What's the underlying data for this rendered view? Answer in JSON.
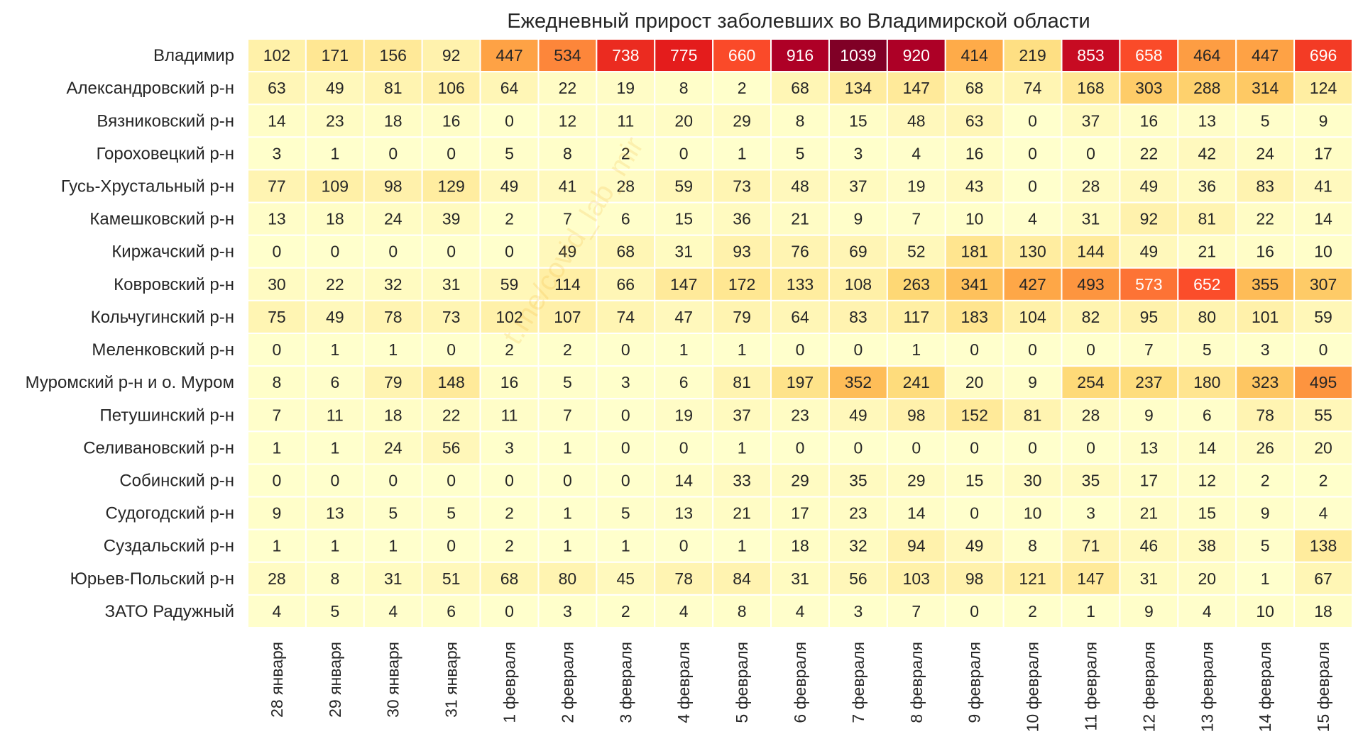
{
  "chart_data": {
    "type": "heatmap",
    "title": "Ежедневный прирост заболевших во Владимирской области",
    "watermark": "t.me/covid_lab_mir",
    "colormap": [
      "#ffffcc",
      "#ffeda0",
      "#fed976",
      "#feb24c",
      "#fd8d3c",
      "#fc4e2a",
      "#e31a1c",
      "#b10026",
      "#800026"
    ],
    "value_range": [
      0,
      1039
    ],
    "x_categories": [
      "28 января",
      "29 января",
      "30 января",
      "31 января",
      "1 февраля",
      "2 февраля",
      "3 февраля",
      "4 февраля",
      "5 февраля",
      "6 февраля",
      "7 февраля",
      "8 февраля",
      "9 февраля",
      "10 февраля",
      "11 февраля",
      "12 февраля",
      "13 февраля",
      "14 февраля",
      "15 февраля"
    ],
    "y_categories": [
      "Владимир",
      "Александровский р-н",
      "Вязниковский р-н",
      "Гороховецкий р-н",
      "Гусь-Хрустальный р-н",
      "Камешковский р-н",
      "Киржачский р-н",
      "Ковровский р-н",
      "Кольчугинский р-н",
      "Меленковский р-н",
      "Муромский р-н и о. Муром",
      "Петушинский р-н",
      "Селивановский р-н",
      "Собинский р-н",
      "Судогодский р-н",
      "Суздальский р-н",
      "Юрьев-Польский р-н",
      "ЗАТО Радужный"
    ],
    "values": [
      [
        102,
        171,
        156,
        92,
        447,
        534,
        738,
        775,
        660,
        916,
        1039,
        920,
        414,
        219,
        853,
        658,
        464,
        447,
        696
      ],
      [
        63,
        49,
        81,
        106,
        64,
        22,
        19,
        8,
        2,
        68,
        134,
        147,
        68,
        74,
        168,
        303,
        288,
        314,
        124
      ],
      [
        14,
        23,
        18,
        16,
        0,
        12,
        11,
        20,
        29,
        8,
        15,
        48,
        63,
        0,
        37,
        16,
        13,
        5,
        9
      ],
      [
        3,
        1,
        0,
        0,
        5,
        8,
        2,
        0,
        1,
        5,
        3,
        4,
        16,
        0,
        0,
        22,
        42,
        24,
        17
      ],
      [
        77,
        109,
        98,
        129,
        49,
        41,
        28,
        59,
        73,
        48,
        37,
        19,
        43,
        0,
        28,
        49,
        36,
        83,
        41
      ],
      [
        13,
        18,
        24,
        39,
        2,
        7,
        6,
        15,
        36,
        21,
        9,
        7,
        10,
        4,
        31,
        92,
        81,
        22,
        14
      ],
      [
        0,
        0,
        0,
        0,
        0,
        49,
        68,
        31,
        93,
        76,
        69,
        52,
        181,
        130,
        144,
        49,
        21,
        16,
        10
      ],
      [
        30,
        22,
        32,
        31,
        59,
        114,
        66,
        147,
        172,
        133,
        108,
        263,
        341,
        427,
        493,
        573,
        652,
        355,
        307
      ],
      [
        75,
        49,
        78,
        73,
        102,
        107,
        74,
        47,
        79,
        64,
        83,
        117,
        183,
        104,
        82,
        95,
        80,
        101,
        59
      ],
      [
        0,
        1,
        1,
        0,
        2,
        2,
        0,
        1,
        1,
        0,
        0,
        1,
        0,
        0,
        0,
        7,
        5,
        3,
        0
      ],
      [
        8,
        6,
        79,
        148,
        16,
        5,
        3,
        6,
        81,
        197,
        352,
        241,
        20,
        9,
        254,
        237,
        180,
        323,
        495
      ],
      [
        7,
        11,
        18,
        22,
        11,
        7,
        0,
        19,
        37,
        23,
        49,
        98,
        152,
        81,
        28,
        9,
        6,
        78,
        55
      ],
      [
        1,
        1,
        24,
        56,
        3,
        1,
        0,
        0,
        1,
        0,
        0,
        0,
        0,
        0,
        0,
        13,
        14,
        26,
        20
      ],
      [
        0,
        0,
        0,
        0,
        0,
        0,
        0,
        14,
        33,
        29,
        35,
        29,
        15,
        30,
        35,
        17,
        12,
        2,
        2
      ],
      [
        9,
        13,
        5,
        5,
        2,
        1,
        5,
        13,
        21,
        17,
        23,
        14,
        0,
        10,
        3,
        21,
        15,
        9,
        4
      ],
      [
        1,
        1,
        1,
        0,
        2,
        1,
        1,
        0,
        1,
        18,
        32,
        94,
        49,
        8,
        71,
        46,
        38,
        5,
        138
      ],
      [
        28,
        8,
        31,
        51,
        68,
        80,
        45,
        78,
        84,
        31,
        56,
        103,
        98,
        121,
        147,
        31,
        20,
        1,
        67
      ],
      [
        4,
        5,
        4,
        6,
        0,
        3,
        2,
        4,
        8,
        4,
        3,
        7,
        0,
        2,
        1,
        9,
        4,
        10,
        18
      ]
    ]
  }
}
